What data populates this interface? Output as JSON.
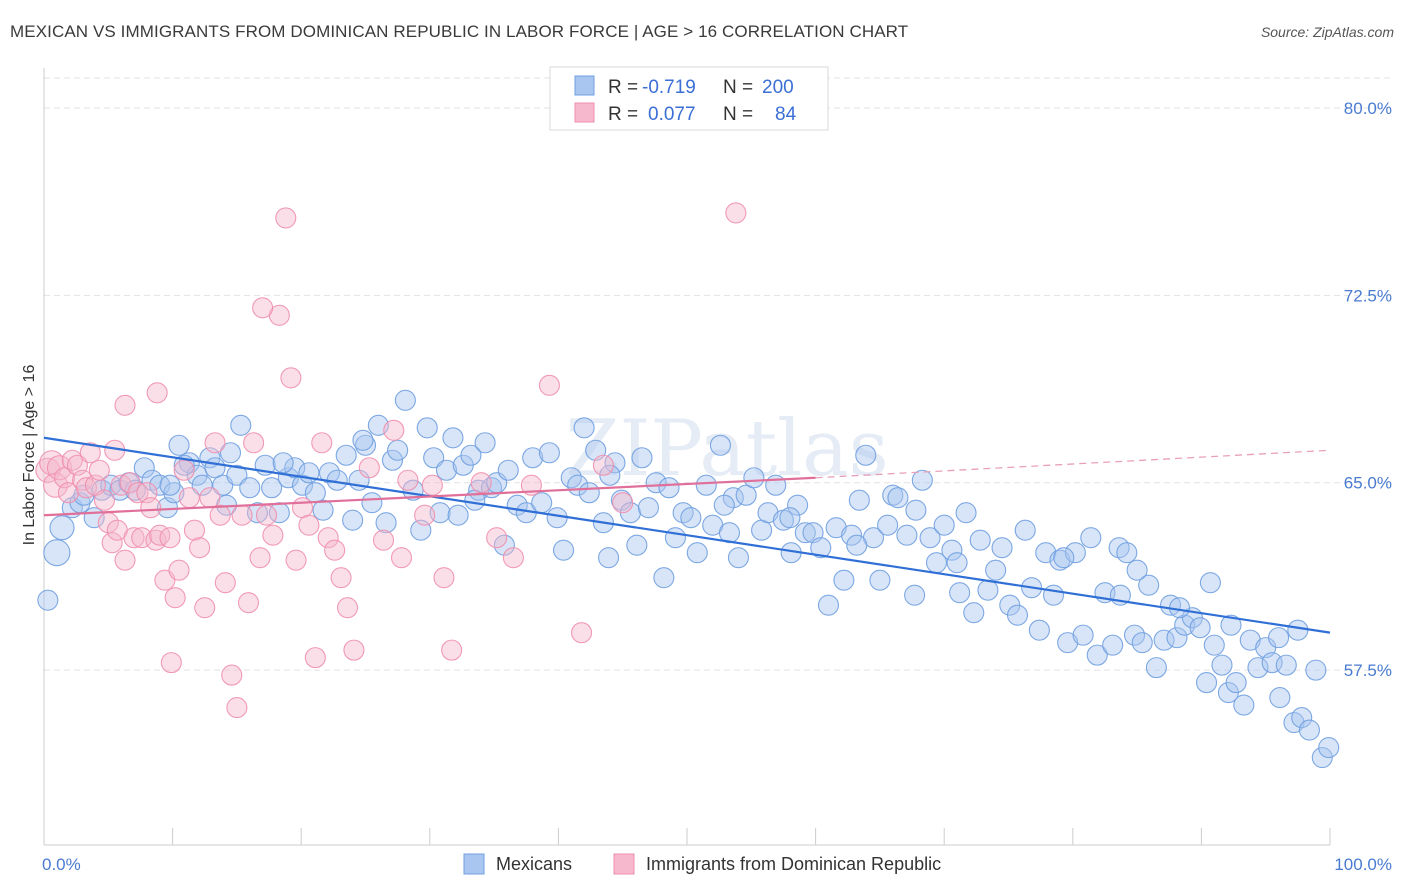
{
  "title": "MEXICAN VS IMMIGRANTS FROM DOMINICAN REPUBLIC IN LABOR FORCE | AGE > 16 CORRELATION CHART",
  "source": "Source: ZipAtlas.com",
  "watermark": "ZIPatlas",
  "legend": {
    "rows": [
      {
        "r_label": "R =",
        "r_value": "-0.719",
        "n_label": "N =",
        "n_value": "200",
        "color": "#a9c6f0"
      },
      {
        "r_label": "R =",
        "r_value": "0.077",
        "n_label": "N =",
        "n_value": "84",
        "color": "#f5b8cc"
      }
    ]
  },
  "bottom_legend": [
    {
      "label": "Mexicans",
      "color": "#a9c6f0"
    },
    {
      "label": "Immigrants from Dominican Republic",
      "color": "#f5b8cc"
    }
  ],
  "chart_data": {
    "type": "scatter",
    "title": "MEXICAN VS IMMIGRANTS FROM DOMINICAN REPUBLIC IN LABOR FORCE | AGE > 16 CORRELATION CHART",
    "xlabel": "",
    "ylabel": "In Labor Force | Age > 16",
    "xlim": [
      0,
      100
    ],
    "ylim": [
      50.5,
      81.2
    ],
    "x_tick_labels": [
      {
        "value": 0,
        "label": "0.0%"
      },
      {
        "value": 100,
        "label": "100.0%"
      }
    ],
    "y_tick_labels": [
      {
        "value": 57.5,
        "label": "57.5%"
      },
      {
        "value": 65.0,
        "label": "65.0%"
      },
      {
        "value": 72.5,
        "label": "72.5%"
      },
      {
        "value": 80.0,
        "label": "80.0%"
      }
    ],
    "grid": true,
    "legend_position": "top-center",
    "series": [
      {
        "name": "Mexicans",
        "color": "#6f9fe0",
        "fill": "#a9c6f0",
        "trend": {
          "x": [
            0,
            100
          ],
          "y": [
            66.8,
            59.0
          ],
          "dashed_from": null
        },
        "points": [
          [
            0.3,
            60.3
          ],
          [
            1.0,
            62.2
          ],
          [
            1.4,
            63.2
          ],
          [
            2.2,
            64.0
          ],
          [
            2.8,
            64.2
          ],
          [
            3.1,
            64.5
          ],
          [
            3.9,
            63.6
          ],
          [
            4.5,
            64.7
          ],
          [
            5.2,
            64.9
          ],
          [
            5.9,
            64.7
          ],
          [
            6.6,
            65.0
          ],
          [
            7.1,
            64.7
          ],
          [
            7.8,
            65.6
          ],
          [
            8.4,
            65.1
          ],
          [
            9.0,
            64.9
          ],
          [
            9.6,
            64.0
          ],
          [
            10.1,
            64.6
          ],
          [
            10.5,
            66.5
          ],
          [
            11.3,
            65.8
          ],
          [
            11.9,
            65.3
          ],
          [
            12.3,
            64.9
          ],
          [
            12.9,
            66.0
          ],
          [
            13.3,
            65.6
          ],
          [
            13.9,
            64.9
          ],
          [
            14.5,
            66.2
          ],
          [
            15.0,
            65.3
          ],
          [
            15.3,
            67.3
          ],
          [
            16.0,
            64.8
          ],
          [
            16.6,
            63.8
          ],
          [
            17.2,
            65.7
          ],
          [
            17.7,
            64.8
          ],
          [
            18.3,
            63.8
          ],
          [
            19.0,
            65.2
          ],
          [
            19.5,
            65.6
          ],
          [
            20.1,
            64.9
          ],
          [
            20.6,
            65.4
          ],
          [
            21.1,
            64.6
          ],
          [
            21.7,
            63.9
          ],
          [
            22.2,
            65.4
          ],
          [
            22.8,
            65.1
          ],
          [
            23.5,
            66.1
          ],
          [
            24.0,
            63.5
          ],
          [
            24.5,
            65.1
          ],
          [
            25.0,
            66.5
          ],
          [
            25.5,
            64.2
          ],
          [
            26.0,
            67.3
          ],
          [
            26.6,
            63.4
          ],
          [
            27.1,
            65.9
          ],
          [
            27.5,
            66.3
          ],
          [
            28.1,
            68.3
          ],
          [
            28.7,
            64.7
          ],
          [
            29.3,
            63.1
          ],
          [
            29.8,
            67.2
          ],
          [
            30.3,
            66.0
          ],
          [
            30.8,
            63.8
          ],
          [
            31.3,
            65.5
          ],
          [
            31.8,
            66.8
          ],
          [
            32.2,
            63.7
          ],
          [
            32.6,
            65.7
          ],
          [
            33.2,
            66.1
          ],
          [
            33.8,
            64.7
          ],
          [
            34.3,
            66.6
          ],
          [
            34.8,
            64.8
          ],
          [
            35.2,
            65.0
          ],
          [
            35.8,
            62.5
          ],
          [
            36.1,
            65.5
          ],
          [
            36.8,
            64.1
          ],
          [
            37.5,
            63.8
          ],
          [
            38.0,
            66.0
          ],
          [
            38.7,
            64.2
          ],
          [
            39.3,
            66.2
          ],
          [
            39.9,
            63.6
          ],
          [
            40.4,
            62.3
          ],
          [
            41.0,
            65.2
          ],
          [
            41.5,
            64.9
          ],
          [
            42.0,
            67.2
          ],
          [
            42.4,
            64.6
          ],
          [
            42.9,
            66.3
          ],
          [
            43.5,
            63.4
          ],
          [
            43.9,
            62.0
          ],
          [
            44.4,
            65.8
          ],
          [
            44.9,
            64.3
          ],
          [
            45.6,
            63.8
          ],
          [
            46.1,
            62.5
          ],
          [
            46.5,
            66.0
          ],
          [
            47.0,
            64.0
          ],
          [
            47.6,
            65.0
          ],
          [
            48.2,
            61.2
          ],
          [
            48.6,
            64.8
          ],
          [
            49.1,
            62.8
          ],
          [
            49.7,
            63.8
          ],
          [
            50.3,
            63.6
          ],
          [
            50.8,
            62.2
          ],
          [
            51.5,
            64.9
          ],
          [
            52.0,
            63.3
          ],
          [
            52.6,
            66.5
          ],
          [
            53.3,
            63.0
          ],
          [
            53.6,
            64.4
          ],
          [
            54.0,
            62.0
          ],
          [
            54.6,
            64.5
          ],
          [
            55.2,
            65.2
          ],
          [
            55.8,
            63.1
          ],
          [
            56.3,
            63.8
          ],
          [
            56.9,
            64.9
          ],
          [
            57.5,
            63.5
          ],
          [
            58.1,
            62.2
          ],
          [
            58.6,
            64.1
          ],
          [
            59.2,
            63.0
          ],
          [
            59.8,
            63.0
          ],
          [
            60.4,
            62.4
          ],
          [
            61.0,
            60.1
          ],
          [
            61.6,
            63.2
          ],
          [
            62.2,
            61.1
          ],
          [
            62.8,
            62.9
          ],
          [
            63.4,
            64.3
          ],
          [
            63.9,
            66.1
          ],
          [
            64.5,
            62.8
          ],
          [
            65.0,
            61.1
          ],
          [
            65.6,
            63.3
          ],
          [
            66.0,
            64.5
          ],
          [
            66.4,
            64.4
          ],
          [
            67.1,
            62.9
          ],
          [
            67.7,
            60.5
          ],
          [
            68.3,
            65.1
          ],
          [
            68.9,
            62.8
          ],
          [
            69.4,
            61.8
          ],
          [
            70.0,
            63.3
          ],
          [
            70.6,
            62.3
          ],
          [
            71.2,
            60.6
          ],
          [
            71.7,
            63.8
          ],
          [
            72.3,
            59.8
          ],
          [
            72.8,
            62.7
          ],
          [
            73.4,
            60.7
          ],
          [
            74.0,
            61.5
          ],
          [
            74.5,
            62.4
          ],
          [
            75.1,
            60.1
          ],
          [
            75.7,
            59.7
          ],
          [
            76.3,
            63.1
          ],
          [
            76.8,
            60.8
          ],
          [
            77.4,
            59.1
          ],
          [
            77.9,
            62.2
          ],
          [
            78.5,
            60.5
          ],
          [
            79.0,
            61.9
          ],
          [
            79.6,
            58.6
          ],
          [
            80.2,
            62.2
          ],
          [
            80.8,
            58.9
          ],
          [
            81.4,
            62.8
          ],
          [
            81.9,
            58.1
          ],
          [
            82.5,
            60.6
          ],
          [
            83.1,
            58.5
          ],
          [
            83.6,
            62.4
          ],
          [
            84.2,
            62.2
          ],
          [
            84.8,
            58.9
          ],
          [
            85.4,
            58.6
          ],
          [
            85.9,
            60.9
          ],
          [
            86.5,
            57.6
          ],
          [
            87.1,
            58.7
          ],
          [
            87.6,
            60.1
          ],
          [
            88.1,
            58.8
          ],
          [
            88.7,
            59.3
          ],
          [
            89.3,
            59.6
          ],
          [
            89.9,
            59.2
          ],
          [
            90.4,
            57.0
          ],
          [
            91.0,
            58.5
          ],
          [
            91.6,
            57.7
          ],
          [
            92.1,
            56.6
          ],
          [
            92.7,
            57.0
          ],
          [
            93.3,
            56.1
          ],
          [
            93.8,
            58.7
          ],
          [
            94.4,
            57.6
          ],
          [
            95.0,
            58.4
          ],
          [
            95.5,
            57.8
          ],
          [
            96.1,
            56.4
          ],
          [
            96.6,
            57.7
          ],
          [
            97.2,
            55.4
          ],
          [
            97.8,
            55.6
          ],
          [
            98.4,
            55.1
          ],
          [
            98.9,
            57.5
          ],
          [
            99.4,
            54.0
          ],
          [
            99.9,
            54.4
          ],
          [
            9.8,
            64.9
          ],
          [
            10.9,
            65.7
          ],
          [
            14.2,
            64.1
          ],
          [
            18.6,
            65.8
          ],
          [
            24.8,
            66.7
          ],
          [
            33.5,
            64.3
          ],
          [
            44.0,
            65.3
          ],
          [
            52.9,
            64.1
          ],
          [
            58.0,
            63.6
          ],
          [
            63.2,
            62.5
          ],
          [
            67.8,
            63.9
          ],
          [
            71.0,
            61.8
          ],
          [
            79.3,
            62.0
          ],
          [
            83.7,
            60.5
          ],
          [
            88.3,
            60.0
          ],
          [
            92.3,
            59.3
          ],
          [
            96.0,
            58.8
          ],
          [
            97.5,
            59.1
          ],
          [
            85.0,
            61.5
          ],
          [
            90.7,
            61.0
          ]
        ]
      },
      {
        "name": "Immigrants from Dominican Republic",
        "color": "#ef8fae",
        "fill": "#f5b8cc",
        "trend": {
          "x": [
            0,
            60
          ],
          "y": [
            63.7,
            65.2
          ],
          "dashed_from": 60,
          "dashed_to_x": 100,
          "dashed_to_y": 66.3
        },
        "points": [
          [
            0.3,
            65.5
          ],
          [
            0.6,
            65.8
          ],
          [
            0.9,
            64.9
          ],
          [
            1.2,
            65.6
          ],
          [
            1.6,
            65.2
          ],
          [
            1.9,
            64.6
          ],
          [
            2.2,
            65.9
          ],
          [
            2.6,
            65.7
          ],
          [
            3.0,
            65.1
          ],
          [
            3.3,
            64.8
          ],
          [
            3.6,
            66.2
          ],
          [
            4.0,
            64.9
          ],
          [
            4.3,
            65.5
          ],
          [
            4.7,
            64.3
          ],
          [
            5.0,
            63.4
          ],
          [
            5.3,
            62.6
          ],
          [
            5.7,
            63.1
          ],
          [
            6.0,
            64.9
          ],
          [
            6.3,
            61.9
          ],
          [
            6.7,
            65.0
          ],
          [
            7.0,
            62.8
          ],
          [
            7.3,
            64.6
          ],
          [
            7.6,
            62.8
          ],
          [
            8.0,
            64.6
          ],
          [
            8.3,
            64.0
          ],
          [
            8.7,
            62.7
          ],
          [
            9.0,
            62.9
          ],
          [
            9.4,
            61.1
          ],
          [
            9.8,
            62.8
          ],
          [
            10.2,
            60.4
          ],
          [
            10.5,
            61.5
          ],
          [
            10.9,
            65.5
          ],
          [
            11.3,
            64.4
          ],
          [
            11.7,
            63.1
          ],
          [
            12.1,
            62.4
          ],
          [
            12.5,
            60.0
          ],
          [
            12.9,
            64.4
          ],
          [
            13.3,
            66.6
          ],
          [
            13.7,
            63.7
          ],
          [
            14.1,
            61.0
          ],
          [
            14.6,
            57.3
          ],
          [
            15.0,
            56.0
          ],
          [
            15.4,
            63.7
          ],
          [
            15.9,
            60.2
          ],
          [
            16.3,
            66.6
          ],
          [
            16.8,
            62.0
          ],
          [
            17.3,
            63.7
          ],
          [
            17.8,
            62.9
          ],
          [
            18.3,
            71.7
          ],
          [
            18.8,
            75.6
          ],
          [
            19.2,
            69.2
          ],
          [
            19.6,
            61.9
          ],
          [
            20.1,
            64.0
          ],
          [
            20.6,
            63.3
          ],
          [
            21.1,
            58.0
          ],
          [
            21.6,
            66.6
          ],
          [
            22.1,
            62.8
          ],
          [
            22.6,
            62.3
          ],
          [
            23.1,
            61.2
          ],
          [
            23.6,
            60.0
          ],
          [
            24.1,
            58.3
          ],
          [
            25.3,
            65.6
          ],
          [
            26.4,
            62.7
          ],
          [
            27.2,
            67.1
          ],
          [
            27.8,
            62.0
          ],
          [
            28.3,
            65.1
          ],
          [
            29.6,
            63.7
          ],
          [
            30.2,
            64.9
          ],
          [
            31.1,
            61.2
          ],
          [
            31.7,
            58.3
          ],
          [
            34.0,
            65.0
          ],
          [
            35.2,
            62.8
          ],
          [
            36.5,
            62.0
          ],
          [
            37.9,
            64.9
          ],
          [
            39.3,
            68.9
          ],
          [
            41.8,
            59.0
          ],
          [
            43.5,
            65.7
          ],
          [
            45.0,
            64.2
          ],
          [
            53.8,
            75.8
          ],
          [
            5.5,
            66.3
          ],
          [
            6.3,
            68.1
          ],
          [
            8.8,
            68.6
          ],
          [
            17.0,
            72.0
          ],
          [
            9.9,
            57.8
          ]
        ]
      }
    ]
  }
}
